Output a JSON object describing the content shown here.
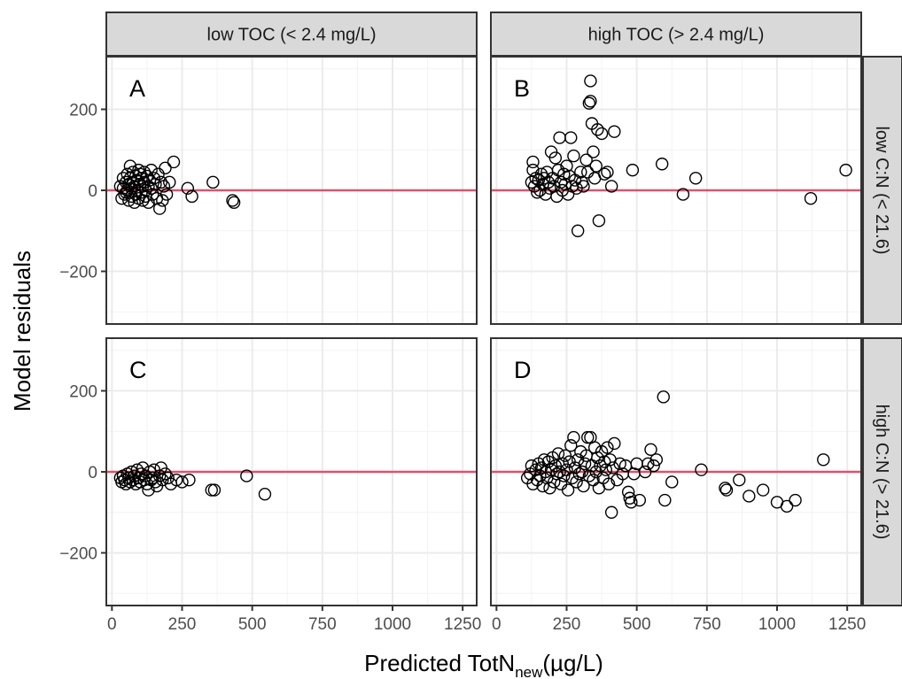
{
  "chart_data": {
    "type": "scatter",
    "facet_columns": [
      "low TOC (< 2.4 mg/L)",
      "high TOC (> 2.4 mg/L)"
    ],
    "facet_rows": [
      "low C:N (< 21.6)",
      "high C:N (> 21.6)"
    ],
    "xlabel_main": "Predicted TotN",
    "xlabel_sub": "new",
    "xlabel_unit": "(µg/L)",
    "ylabel": "Model residuals",
    "xlim": [
      -20,
      1300
    ],
    "ylim": [
      -330,
      330
    ],
    "x_ticks": [
      0,
      250,
      500,
      750,
      1000,
      1250
    ],
    "x_tick_labels": [
      "0",
      "250",
      "500",
      "750",
      "1000",
      "1250"
    ],
    "y_ticks": [
      200,
      0,
      -200
    ],
    "y_tick_labels": [
      "200",
      "0",
      "−200"
    ],
    "reference_line": {
      "y": 0,
      "color": "#d9536f"
    },
    "grid": true,
    "colors": {
      "strip_fill": "#d9d9d9",
      "point_stroke": "#000000",
      "grid": "#ebebeb"
    },
    "panels": [
      {
        "label": "A",
        "col": 0,
        "row": 0,
        "points": [
          [
            30,
            10
          ],
          [
            35,
            -20
          ],
          [
            40,
            5
          ],
          [
            40,
            30
          ],
          [
            45,
            -10
          ],
          [
            50,
            20
          ],
          [
            50,
            -5
          ],
          [
            55,
            40
          ],
          [
            55,
            0
          ],
          [
            60,
            -25
          ],
          [
            60,
            15
          ],
          [
            65,
            60
          ],
          [
            65,
            30
          ],
          [
            70,
            -15
          ],
          [
            70,
            5
          ],
          [
            75,
            45
          ],
          [
            75,
            20
          ],
          [
            80,
            -30
          ],
          [
            80,
            10
          ],
          [
            85,
            35
          ],
          [
            85,
            -10
          ],
          [
            90,
            25
          ],
          [
            90,
            0
          ],
          [
            95,
            50
          ],
          [
            95,
            -20
          ],
          [
            100,
            15
          ],
          [
            100,
            40
          ],
          [
            105,
            -5
          ],
          [
            105,
            30
          ],
          [
            110,
            10
          ],
          [
            110,
            -25
          ],
          [
            115,
            45
          ],
          [
            115,
            20
          ],
          [
            120,
            0
          ],
          [
            120,
            -15
          ],
          [
            125,
            35
          ],
          [
            130,
            10
          ],
          [
            130,
            -30
          ],
          [
            135,
            25
          ],
          [
            140,
            5
          ],
          [
            140,
            50
          ],
          [
            145,
            -10
          ],
          [
            150,
            30
          ],
          [
            155,
            15
          ],
          [
            160,
            -20
          ],
          [
            165,
            40
          ],
          [
            170,
            -45
          ],
          [
            175,
            20
          ],
          [
            180,
            -25
          ],
          [
            185,
            10
          ],
          [
            190,
            55
          ],
          [
            195,
            -10
          ],
          [
            205,
            20
          ],
          [
            220,
            70
          ],
          [
            270,
            5
          ],
          [
            285,
            -15
          ],
          [
            360,
            20
          ],
          [
            430,
            -25
          ],
          [
            435,
            -30
          ]
        ]
      },
      {
        "label": "B",
        "col": 1,
        "row": 0,
        "points": [
          [
            125,
            20
          ],
          [
            130,
            70
          ],
          [
            130,
            50
          ],
          [
            135,
            10
          ],
          [
            140,
            30
          ],
          [
            145,
            -5
          ],
          [
            150,
            25
          ],
          [
            155,
            0
          ],
          [
            160,
            40
          ],
          [
            165,
            15
          ],
          [
            170,
            30
          ],
          [
            175,
            -10
          ],
          [
            180,
            45
          ],
          [
            185,
            20
          ],
          [
            190,
            5
          ],
          [
            195,
            95
          ],
          [
            200,
            30
          ],
          [
            205,
            10
          ],
          [
            210,
            80
          ],
          [
            215,
            -15
          ],
          [
            220,
            50
          ],
          [
            225,
            130
          ],
          [
            230,
            20
          ],
          [
            235,
            0
          ],
          [
            240,
            40
          ],
          [
            245,
            15
          ],
          [
            250,
            60
          ],
          [
            255,
            -10
          ],
          [
            260,
            35
          ],
          [
            265,
            130
          ],
          [
            270,
            10
          ],
          [
            275,
            85
          ],
          [
            280,
            25
          ],
          [
            285,
            5
          ],
          [
            290,
            -100
          ],
          [
            300,
            45
          ],
          [
            305,
            20
          ],
          [
            310,
            10
          ],
          [
            320,
            75
          ],
          [
            325,
            45
          ],
          [
            330,
            215
          ],
          [
            335,
            220
          ],
          [
            335,
            270
          ],
          [
            340,
            165
          ],
          [
            345,
            95
          ],
          [
            350,
            30
          ],
          [
            355,
            60
          ],
          [
            360,
            150
          ],
          [
            365,
            -75
          ],
          [
            375,
            140
          ],
          [
            385,
            40
          ],
          [
            395,
            45
          ],
          [
            410,
            10
          ],
          [
            420,
            145
          ],
          [
            485,
            50
          ],
          [
            590,
            65
          ],
          [
            665,
            -10
          ],
          [
            710,
            30
          ],
          [
            1120,
            -20
          ],
          [
            1245,
            50
          ]
        ]
      },
      {
        "label": "C",
        "col": 0,
        "row": 1,
        "points": [
          [
            30,
            -15
          ],
          [
            35,
            -25
          ],
          [
            40,
            -10
          ],
          [
            45,
            -20
          ],
          [
            50,
            -30
          ],
          [
            55,
            -5
          ],
          [
            60,
            -15
          ],
          [
            65,
            -25
          ],
          [
            70,
            0
          ],
          [
            75,
            -20
          ],
          [
            80,
            -10
          ],
          [
            85,
            -30
          ],
          [
            90,
            5
          ],
          [
            95,
            -15
          ],
          [
            100,
            -25
          ],
          [
            105,
            -5
          ],
          [
            110,
            10
          ],
          [
            115,
            -20
          ],
          [
            120,
            -10
          ],
          [
            125,
            -30
          ],
          [
            130,
            -45
          ],
          [
            135,
            0
          ],
          [
            140,
            -20
          ],
          [
            145,
            -15
          ],
          [
            150,
            5
          ],
          [
            155,
            -25
          ],
          [
            160,
            -35
          ],
          [
            170,
            -10
          ],
          [
            175,
            10
          ],
          [
            180,
            -20
          ],
          [
            190,
            -5
          ],
          [
            200,
            -15
          ],
          [
            210,
            -30
          ],
          [
            230,
            -20
          ],
          [
            250,
            -25
          ],
          [
            275,
            -20
          ],
          [
            355,
            -45
          ],
          [
            365,
            -45
          ],
          [
            480,
            -10
          ],
          [
            545,
            -55
          ]
        ]
      },
      {
        "label": "D",
        "col": 1,
        "row": 1,
        "points": [
          [
            110,
            -15
          ],
          [
            120,
            -5
          ],
          [
            125,
            15
          ],
          [
            130,
            -30
          ],
          [
            140,
            5
          ],
          [
            145,
            -20
          ],
          [
            150,
            20
          ],
          [
            155,
            -10
          ],
          [
            160,
            10
          ],
          [
            165,
            -35
          ],
          [
            170,
            30
          ],
          [
            175,
            0
          ],
          [
            180,
            -15
          ],
          [
            185,
            25
          ],
          [
            190,
            -40
          ],
          [
            195,
            5
          ],
          [
            200,
            35
          ],
          [
            205,
            -25
          ],
          [
            210,
            15
          ],
          [
            215,
            -5
          ],
          [
            220,
            45
          ],
          [
            225,
            0
          ],
          [
            230,
            -30
          ],
          [
            235,
            20
          ],
          [
            240,
            -10
          ],
          [
            245,
            40
          ],
          [
            250,
            5
          ],
          [
            255,
            -45
          ],
          [
            260,
            25
          ],
          [
            265,
            65
          ],
          [
            270,
            -15
          ],
          [
            275,
            85
          ],
          [
            280,
            10
          ],
          [
            285,
            -25
          ],
          [
            290,
            30
          ],
          [
            295,
            -5
          ],
          [
            300,
            50
          ],
          [
            305,
            0
          ],
          [
            310,
            -35
          ],
          [
            315,
            20
          ],
          [
            320,
            40
          ],
          [
            325,
            85
          ],
          [
            330,
            -10
          ],
          [
            335,
            85
          ],
          [
            340,
            15
          ],
          [
            345,
            -20
          ],
          [
            350,
            60
          ],
          [
            355,
            0
          ],
          [
            360,
            35
          ],
          [
            365,
            -40
          ],
          [
            370,
            15
          ],
          [
            375,
            50
          ],
          [
            380,
            -15
          ],
          [
            385,
            25
          ],
          [
            390,
            5
          ],
          [
            395,
            60
          ],
          [
            400,
            -30
          ],
          [
            405,
            30
          ],
          [
            410,
            -100
          ],
          [
            415,
            10
          ],
          [
            420,
            70
          ],
          [
            430,
            -20
          ],
          [
            440,
            20
          ],
          [
            450,
            -5
          ],
          [
            460,
            15
          ],
          [
            470,
            -50
          ],
          [
            475,
            -65
          ],
          [
            480,
            -75
          ],
          [
            490,
            -5
          ],
          [
            500,
            20
          ],
          [
            510,
            -70
          ],
          [
            530,
            0
          ],
          [
            540,
            20
          ],
          [
            550,
            55
          ],
          [
            560,
            15
          ],
          [
            570,
            30
          ],
          [
            595,
            185
          ],
          [
            600,
            -70
          ],
          [
            625,
            -25
          ],
          [
            730,
            5
          ],
          [
            815,
            -40
          ],
          [
            820,
            -45
          ],
          [
            865,
            -20
          ],
          [
            900,
            -60
          ],
          [
            950,
            -45
          ],
          [
            1000,
            -75
          ],
          [
            1035,
            -85
          ],
          [
            1065,
            -70
          ],
          [
            1165,
            30
          ]
        ]
      }
    ]
  }
}
